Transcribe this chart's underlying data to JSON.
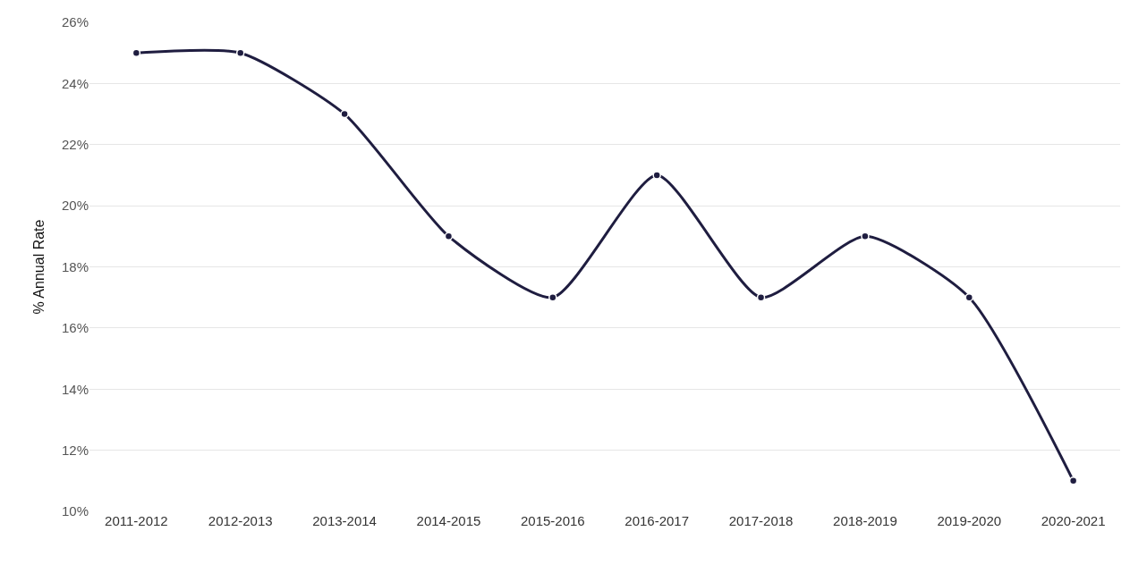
{
  "chart_data": {
    "type": "line",
    "ylabel": "% Annual Rate",
    "categories": [
      "2011-2012",
      "2012-2013",
      "2013-2014",
      "2014-2015",
      "2015-2016",
      "2016-2017",
      "2017-2018",
      "2018-2019",
      "2019-2020",
      "2020-2021"
    ],
    "values": [
      25,
      25,
      23,
      19,
      17,
      21,
      17,
      19,
      17,
      11
    ],
    "color": "#1f1d40",
    "marker": "circle",
    "line_style": "solid",
    "grid": "y",
    "legend": false,
    "ylim": [
      10,
      26
    ],
    "yticks": [
      {
        "value": 10,
        "label": "10%"
      },
      {
        "value": 12,
        "label": "12%"
      },
      {
        "value": 14,
        "label": "14%"
      },
      {
        "value": 16,
        "label": "16%"
      },
      {
        "value": 18,
        "label": "18%"
      },
      {
        "value": 20,
        "label": "20%"
      },
      {
        "value": 22,
        "label": "22%"
      },
      {
        "value": 24,
        "label": "24%"
      },
      {
        "value": 26,
        "label": "26%"
      }
    ]
  }
}
